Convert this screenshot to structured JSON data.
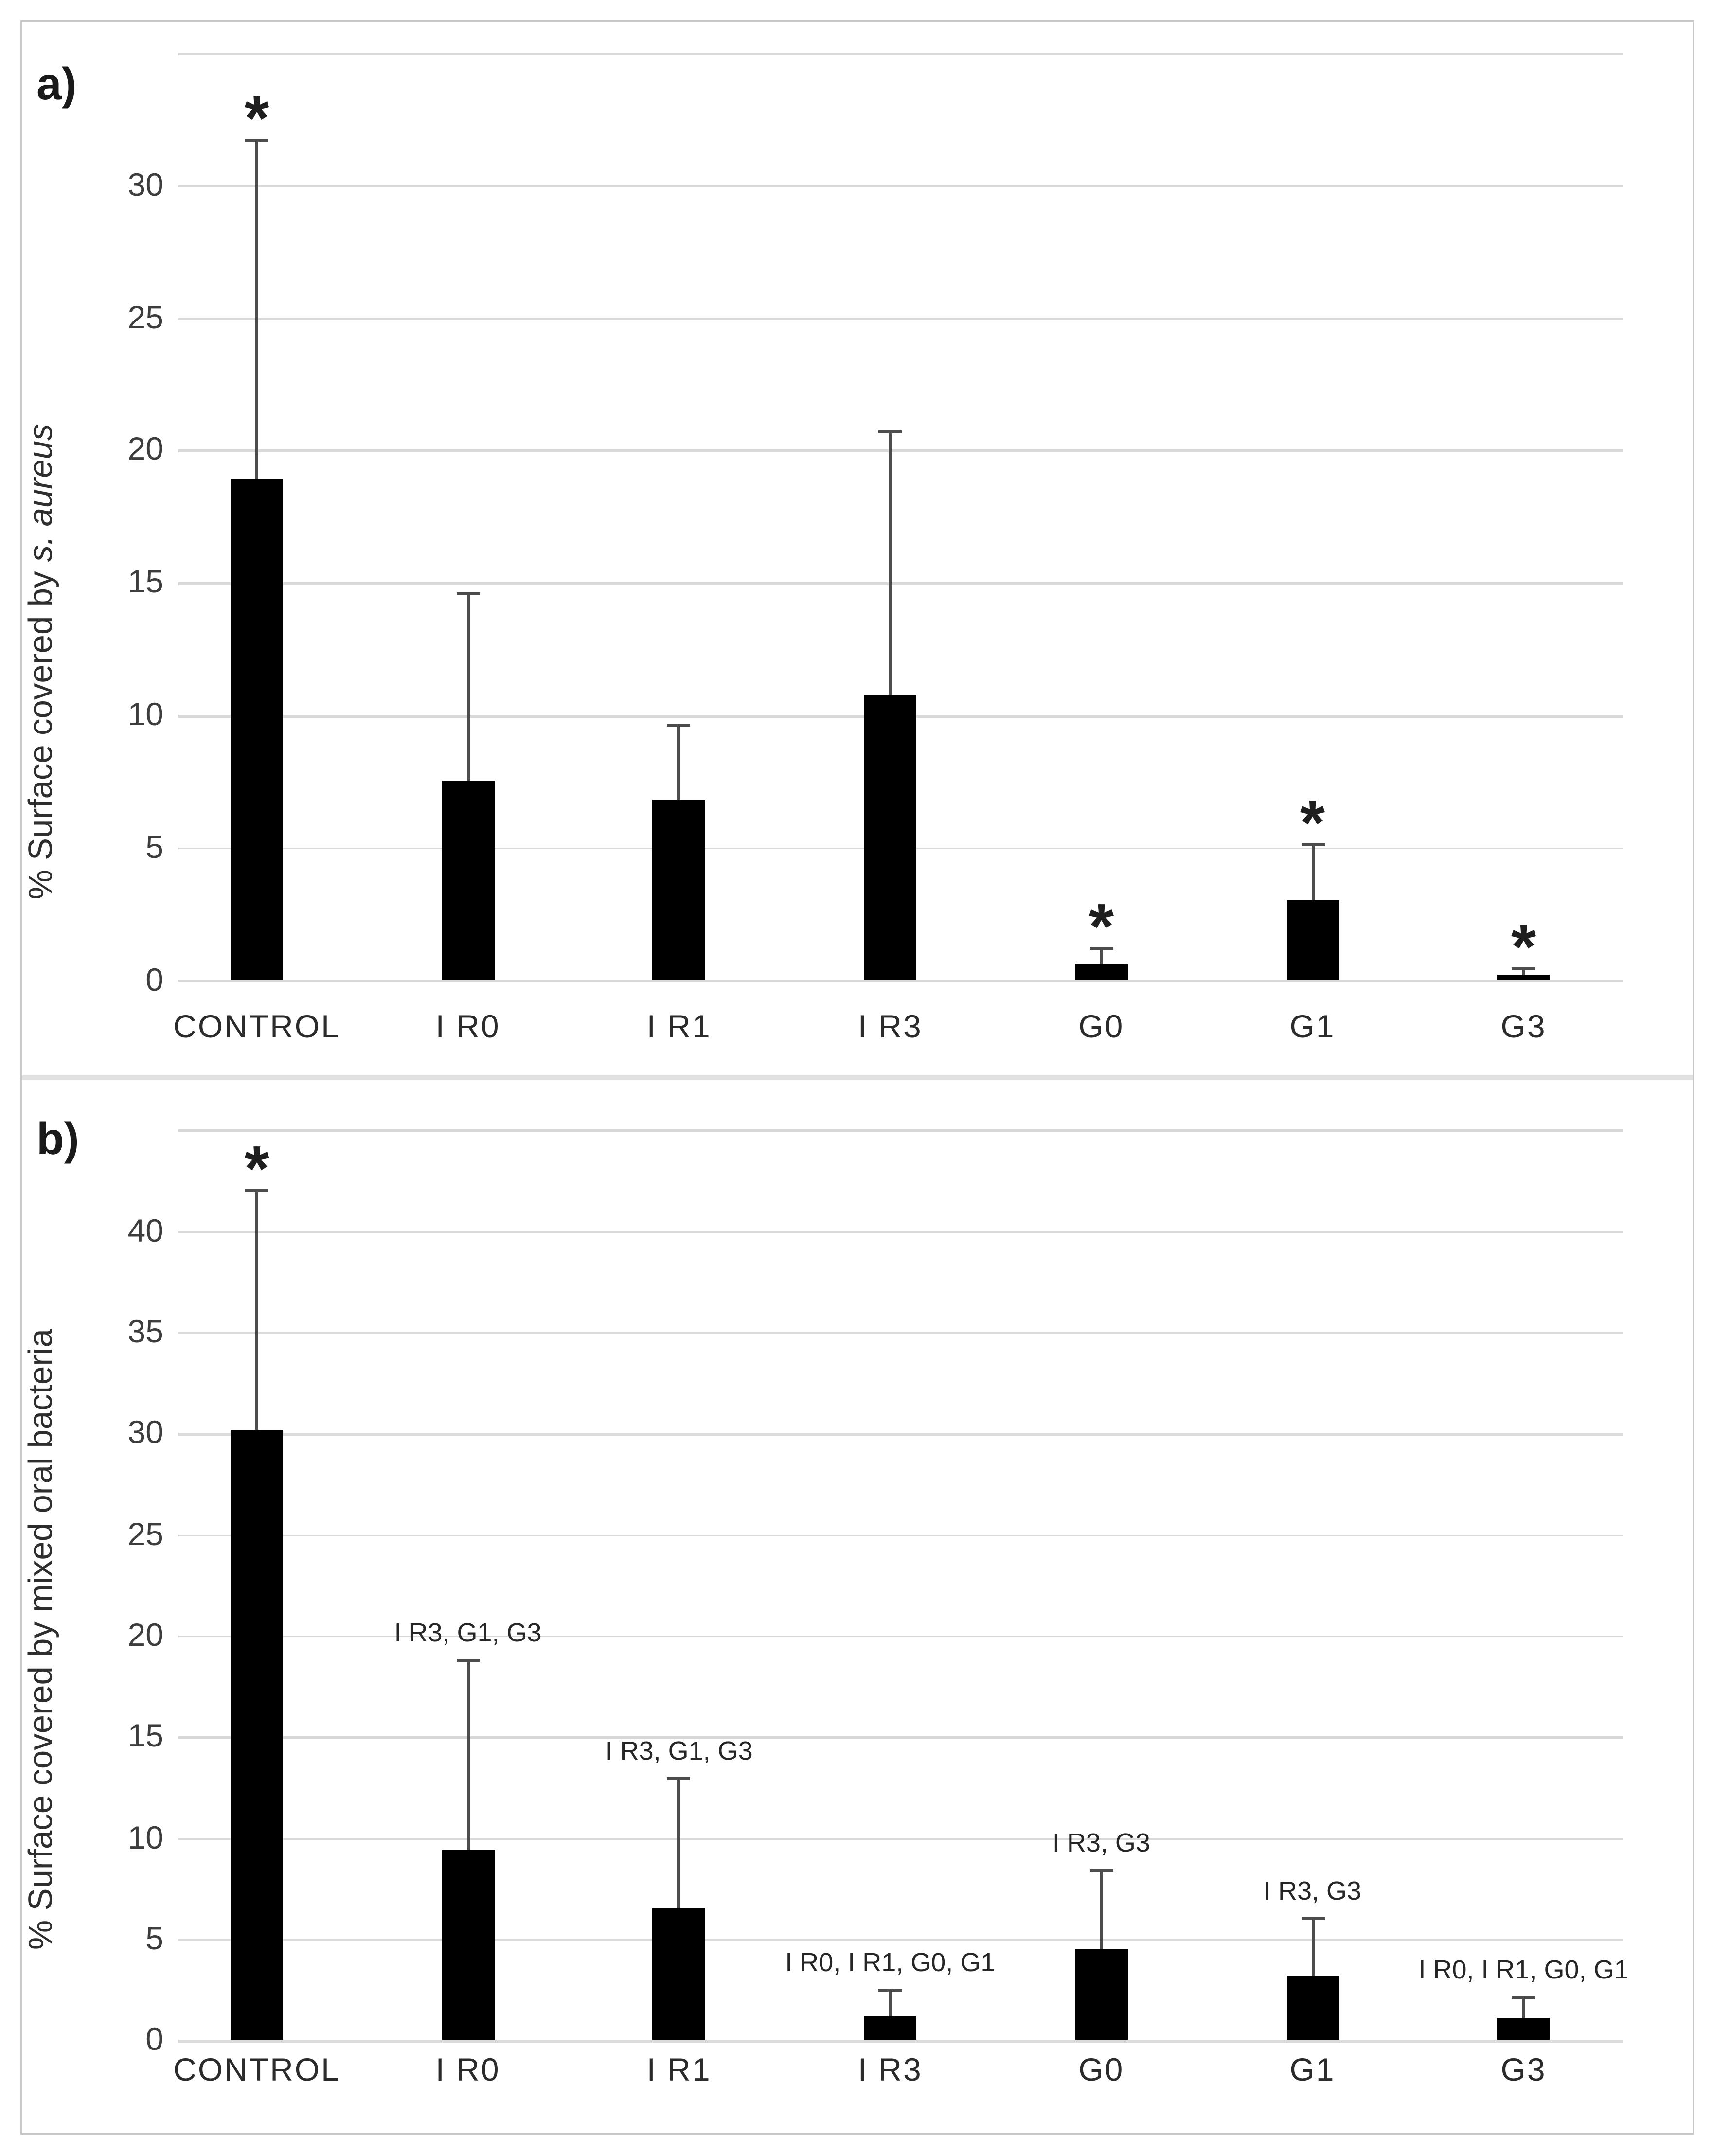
{
  "figure": {
    "panel_a_label": "a)",
    "panel_b_label": "b)"
  },
  "chart_data": [
    {
      "type": "bar",
      "panel": "a",
      "title": "",
      "ylabel": "% Surface covered by s. aureus",
      "ylabel_prefix": "% Surface covered by ",
      "ylabel_italic": "s. aureus",
      "categories": [
        "CONTROL",
        "I R0",
        "I R1",
        "I R3",
        "G0",
        "G1",
        "G3"
      ],
      "values": [
        18.9,
        7.5,
        6.8,
        10.8,
        0.6,
        3.0,
        0.2
      ],
      "error_plus": [
        12.8,
        7.1,
        2.8,
        9.9,
        0.6,
        2.1,
        0.2
      ],
      "significance": [
        "*",
        "",
        "",
        "",
        "*",
        "*",
        "*"
      ],
      "annotations": [
        "",
        "",
        "",
        "",
        "",
        "",
        ""
      ],
      "ylim": [
        0,
        35
      ],
      "ytick_step": 5,
      "ytick_label_max": 30,
      "grid": true,
      "legend": null,
      "colors": {
        "bar": "#000000",
        "grid": "#d9d9d9",
        "error": "#4d4d4d",
        "text": "#2b2b2b"
      }
    },
    {
      "type": "bar",
      "panel": "b",
      "title": "",
      "ylabel": "% Surface covered by mixed oral bacteria",
      "categories": [
        "CONTROL",
        "I R0",
        "I R1",
        "I R3",
        "G0",
        "G1",
        "G3"
      ],
      "values": [
        30.2,
        9.4,
        6.5,
        1.2,
        4.5,
        3.2,
        1.1
      ],
      "error_plus": [
        11.8,
        9.4,
        6.4,
        1.3,
        3.9,
        2.8,
        1.0
      ],
      "significance": [
        "*",
        "",
        "",
        "",
        "",
        "",
        ""
      ],
      "annotations": [
        "",
        "I R3, G1, G3",
        "I R3, G1, G3",
        "I R0, I R1, G0, G1",
        "I R3, G3",
        "I R3, G3",
        "I R0, I R1, G0, G1"
      ],
      "ylim": [
        0,
        45
      ],
      "ytick_step": 5,
      "ytick_label_max": 40,
      "grid": true,
      "legend": null,
      "colors": {
        "bar": "#000000",
        "grid": "#d9d9d9",
        "error": "#4d4d4d",
        "text": "#2b2b2b"
      }
    }
  ]
}
